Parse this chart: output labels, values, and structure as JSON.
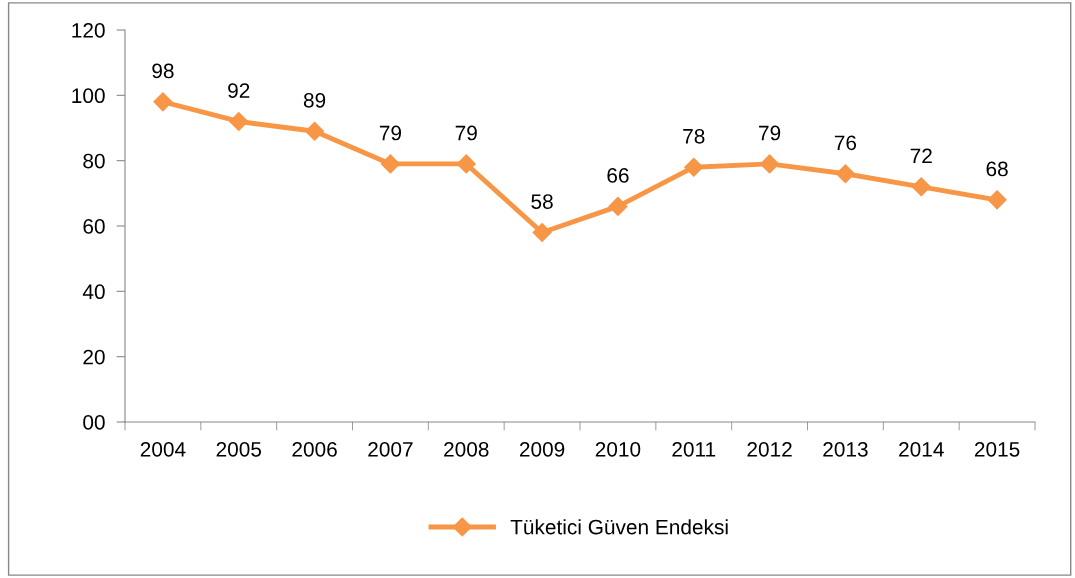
{
  "chart_data": {
    "type": "line",
    "categories": [
      "2004",
      "2005",
      "2006",
      "2007",
      "2008",
      "2009",
      "2010",
      "2011",
      "2012",
      "2013",
      "2014",
      "2015"
    ],
    "series": [
      {
        "name": "Tüketici Güven Endeksi",
        "color": "#f79646",
        "values": [
          98,
          92,
          89,
          79,
          79,
          58,
          66,
          78,
          79,
          76,
          72,
          68
        ]
      }
    ],
    "ylim": [
      0,
      120
    ],
    "yticks": [
      {
        "value": 0,
        "label": "00"
      },
      20,
      40,
      60,
      80,
      100,
      120
    ],
    "data_labels": true,
    "marker": "diamond",
    "line_style": "solid",
    "grid": false,
    "legend": "bottom"
  }
}
